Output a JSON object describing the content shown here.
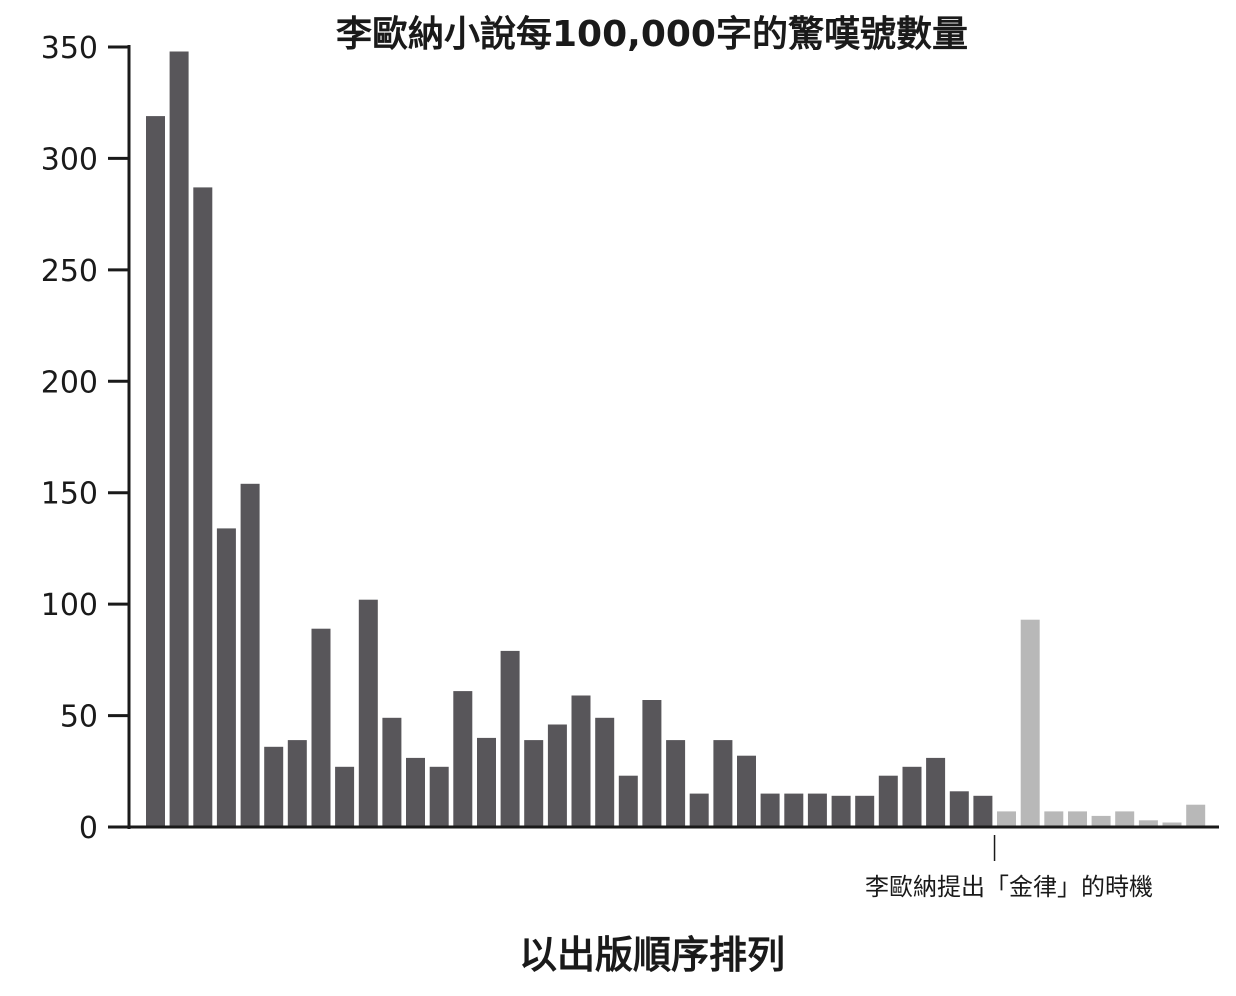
{
  "chart_data": {
    "type": "bar",
    "title": "李歐納小說每100,000字的驚嘆號數量",
    "xlabel": "以出版順序排列",
    "ylabel": "",
    "ylim": [
      0,
      350
    ],
    "yticks": [
      "0",
      "50",
      "100",
      "150",
      "200",
      "250",
      "300",
      "350"
    ],
    "grid": false,
    "values": [
      319,
      348,
      287,
      134,
      154,
      36,
      39,
      89,
      27,
      102,
      49,
      31,
      27,
      61,
      40,
      79,
      39,
      46,
      59,
      49,
      23,
      57,
      39,
      15,
      39,
      32,
      15,
      15,
      15,
      14,
      14,
      23,
      27,
      31,
      16,
      14,
      7,
      93,
      7,
      7,
      5,
      7,
      3,
      2,
      10
    ],
    "highlight_from_index": 36,
    "colors": {
      "before": "#58565a",
      "after": "#b8b8b8",
      "axis": "#1a1a1a"
    },
    "annotation": {
      "text": "李歐納提出「金律」的時機",
      "at_index": 36
    }
  }
}
